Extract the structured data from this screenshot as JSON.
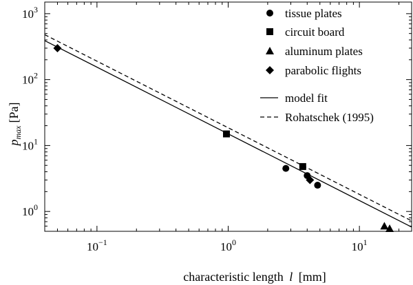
{
  "chart_data": {
    "type": "scatter",
    "xscale": "log",
    "yscale": "log",
    "xlim": [
      0.04,
      25
    ],
    "ylim": [
      0.5,
      1500
    ],
    "grid": false,
    "legend_position": "top-right",
    "xlabel_pre": "characteristic length",
    "xlabel_var": "l",
    "xlabel_unit": "[mm]",
    "ylabel_var": "p",
    "ylabel_sub": "max",
    "ylabel_unit": "[Pa]",
    "x_ticks": [
      {
        "value": 0.1,
        "base": "10",
        "exp": "−1"
      },
      {
        "value": 1,
        "base": "10",
        "exp": "0"
      },
      {
        "value": 10,
        "base": "10",
        "exp": "1"
      }
    ],
    "y_ticks": [
      {
        "value": 1,
        "base": "10",
        "exp": "0"
      },
      {
        "value": 10,
        "base": "10",
        "exp": "1"
      },
      {
        "value": 100,
        "base": "10",
        "exp": "2"
      },
      {
        "value": 1000,
        "base": "10",
        "exp": "3"
      }
    ],
    "series": [
      {
        "name": "tissue plates",
        "marker": "circle",
        "points": [
          [
            2.75,
            4.5
          ],
          [
            4.0,
            3.5
          ],
          [
            4.8,
            2.5
          ]
        ]
      },
      {
        "name": "circuit board",
        "marker": "square",
        "points": [
          [
            0.97,
            15.0
          ],
          [
            3.7,
            4.8
          ]
        ]
      },
      {
        "name": "aluminum plates",
        "marker": "triangle",
        "points": [
          [
            15.5,
            0.6
          ],
          [
            17.0,
            0.55
          ]
        ]
      },
      {
        "name": "parabolic flights",
        "marker": "diamond",
        "points": [
          [
            0.05,
            300
          ],
          [
            4.2,
            3.0
          ]
        ]
      }
    ],
    "lines": [
      {
        "name": "model fit",
        "style": "solid",
        "points": [
          [
            0.04,
            390
          ],
          [
            25,
            0.58
          ]
        ]
      },
      {
        "name": "Rohatschek (1995)",
        "style": "dashed",
        "points": [
          [
            0.04,
            480
          ],
          [
            25,
            0.72
          ]
        ]
      }
    ]
  }
}
